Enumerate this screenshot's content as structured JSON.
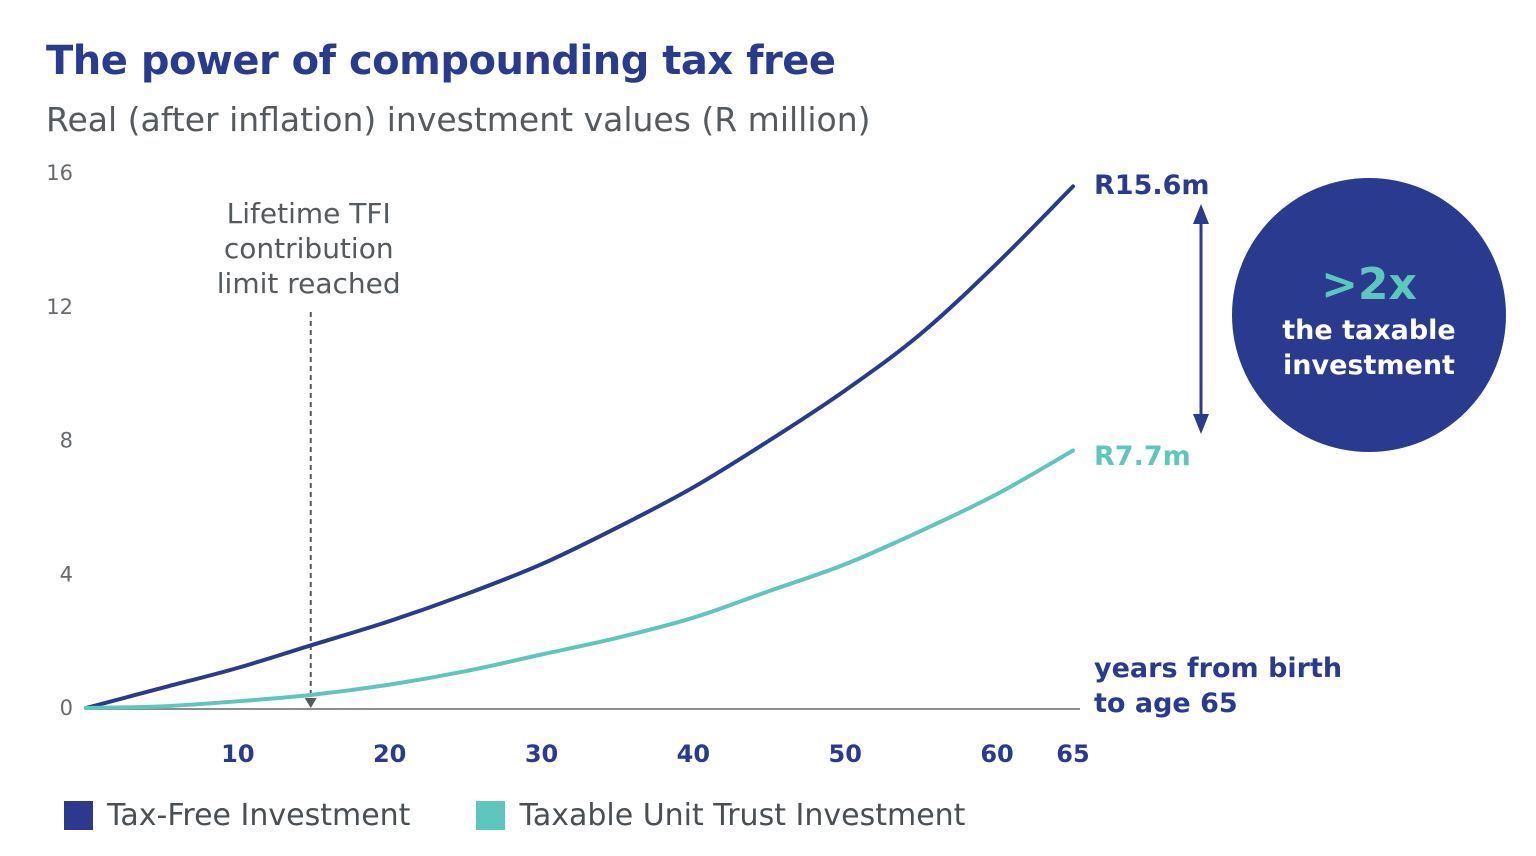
{
  "header": {
    "title": "The power of compounding tax free",
    "subtitle": "Real (after inflation) investment values (R million)"
  },
  "chart_data": {
    "type": "line",
    "title": "The power of compounding tax free",
    "subtitle": "Real (after inflation) investment values (R million)",
    "xlabel": "years from birth to age 65",
    "xlabel_lines": [
      "years from birth",
      "to age 65"
    ],
    "ylabel": "",
    "xlim": [
      0,
      65
    ],
    "ylim": [
      0,
      16
    ],
    "xticks": [
      10,
      20,
      30,
      40,
      50,
      60,
      65
    ],
    "yticks": [
      0,
      4,
      8,
      12,
      16
    ],
    "grid": false,
    "legend_position": "bottom-left",
    "series": [
      {
        "name": "Tax-Free Investment",
        "color": "#2a3a8f",
        "x": [
          0,
          5,
          10,
          15,
          20,
          25,
          30,
          35,
          40,
          45,
          50,
          55,
          60,
          65
        ],
        "values": [
          0,
          0.6,
          1.2,
          1.9,
          2.6,
          3.4,
          4.3,
          5.4,
          6.6,
          8.0,
          9.5,
          11.2,
          13.3,
          15.6
        ]
      },
      {
        "name": "Taxable Unit Trust Investment",
        "color": "#5cc7bd",
        "x": [
          0,
          5,
          10,
          15,
          20,
          25,
          30,
          35,
          40,
          45,
          50,
          55,
          60,
          65
        ],
        "values": [
          0,
          0.05,
          0.2,
          0.4,
          0.7,
          1.1,
          1.6,
          2.1,
          2.7,
          3.5,
          4.3,
          5.3,
          6.4,
          7.7
        ]
      }
    ],
    "annotations": {
      "limit_marker": {
        "x": 14.8,
        "lines": [
          "Lifetime TFI",
          "contribution",
          "limit reached"
        ]
      },
      "end_labels": [
        "R15.6m",
        "R7.7m"
      ],
      "badge": {
        "big": ">2x",
        "lines": [
          "the taxable",
          "investment"
        ]
      }
    }
  },
  "colors": {
    "navy": "#2a3a8f",
    "teal": "#5cc7bd",
    "axis": "#8a8e91",
    "text_gray": "#555a5e"
  }
}
